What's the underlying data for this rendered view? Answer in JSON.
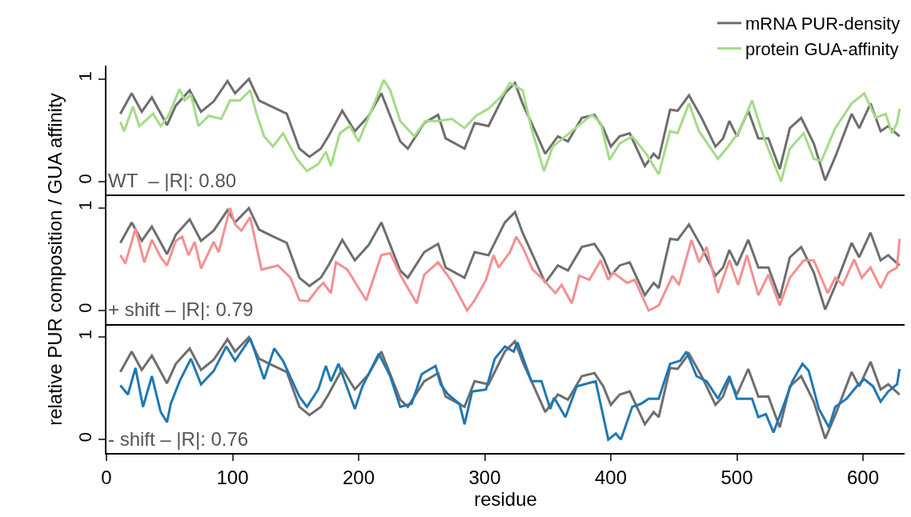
{
  "chart_data": [
    {
      "type": "line",
      "xlim": [
        0,
        633
      ],
      "xticks": [
        0,
        100,
        200,
        300,
        400,
        500,
        600
      ],
      "ylim": [
        -0.13,
        1.13
      ],
      "yticks": [
        0,
        1
      ],
      "tick_labels": "y",
      "legend": "top right",
      "annotations": [
        "WT  – |R|: 0.80"
      ],
      "series": [
        {
          "name": "mRNA PUR-density",
          "color": "#6e6e6e",
          "x": [
            11,
            20,
            28,
            36,
            48,
            55,
            66,
            75,
            85,
            96,
            102,
            113,
            121,
            131,
            143,
            153,
            161,
            170,
            176,
            187,
            197,
            208,
            218,
            233,
            239,
            252,
            263,
            269,
            284,
            292,
            303,
            316,
            324,
            330,
            340,
            348,
            358,
            366,
            377,
            387,
            394,
            400,
            407,
            415,
            427,
            434,
            438,
            447,
            453,
            462,
            472,
            483,
            489,
            494,
            500,
            509,
            517,
            525,
            534,
            542,
            551,
            561,
            570,
            578,
            591,
            597,
            606,
            614,
            620,
            629
          ],
          "values": [
            0.66,
            0.86,
            0.68,
            0.82,
            0.55,
            0.74,
            0.89,
            0.68,
            0.78,
            0.98,
            0.86,
            1.0,
            0.79,
            0.73,
            0.66,
            0.32,
            0.24,
            0.32,
            0.44,
            0.69,
            0.49,
            0.64,
            0.86,
            0.39,
            0.32,
            0.57,
            0.65,
            0.42,
            0.32,
            0.57,
            0.54,
            0.86,
            0.96,
            0.76,
            0.49,
            0.27,
            0.44,
            0.39,
            0.62,
            0.65,
            0.52,
            0.34,
            0.44,
            0.47,
            0.15,
            0.27,
            0.22,
            0.7,
            0.69,
            0.84,
            0.62,
            0.34,
            0.42,
            0.59,
            0.44,
            0.69,
            0.42,
            0.42,
            0.12,
            0.52,
            0.62,
            0.37,
            0.01,
            0.24,
            0.66,
            0.52,
            0.76,
            0.49,
            0.54,
            0.44
          ]
        },
        {
          "name": "protein GUA-affinity",
          "color": "#a3dc85",
          "x": [
            11,
            14,
            21,
            26,
            37,
            43,
            49,
            58,
            62,
            67,
            73,
            81,
            91,
            98,
            106,
            114,
            119,
            125,
            132,
            140,
            151,
            159,
            168,
            174,
            178,
            185,
            193,
            200,
            210,
            220,
            225,
            233,
            244,
            253,
            263,
            274,
            284,
            293,
            303,
            314,
            320,
            330,
            337,
            347,
            354,
            364,
            385,
            392,
            399,
            407,
            417,
            428,
            438,
            447,
            453,
            462,
            470,
            485,
            493,
            502,
            512,
            521,
            535,
            542,
            553,
            561,
            567,
            578,
            591,
            601,
            610,
            618,
            623,
            627,
            629
          ],
          "values": [
            0.58,
            0.49,
            0.73,
            0.54,
            0.66,
            0.54,
            0.64,
            0.9,
            0.79,
            0.85,
            0.54,
            0.64,
            0.61,
            0.79,
            0.79,
            0.89,
            0.66,
            0.44,
            0.34,
            0.47,
            0.22,
            0.1,
            0.17,
            0.29,
            0.15,
            0.47,
            0.54,
            0.39,
            0.69,
            0.99,
            0.89,
            0.59,
            0.44,
            0.59,
            0.59,
            0.61,
            0.52,
            0.64,
            0.71,
            0.84,
            0.96,
            0.89,
            0.52,
            0.1,
            0.34,
            0.44,
            0.65,
            0.57,
            0.21,
            0.37,
            0.44,
            0.27,
            0.07,
            0.49,
            0.47,
            0.76,
            0.49,
            0.22,
            0.34,
            0.49,
            0.79,
            0.44,
            0.0,
            0.32,
            0.47,
            0.22,
            0.2,
            0.52,
            0.76,
            0.86,
            0.62,
            0.66,
            0.47,
            0.57,
            0.71
          ]
        }
      ]
    },
    {
      "type": "line",
      "xlim": [
        0,
        633
      ],
      "xticks": [
        0,
        100,
        200,
        300,
        400,
        500,
        600
      ],
      "ylim": [
        -0.13,
        1.13
      ],
      "yticks": [
        0,
        1
      ],
      "tick_labels": "y",
      "ylabel": "relative PUR composition / GUA affinity",
      "annotations": [
        "+ shift – |R|: 0.79"
      ],
      "series": [
        {
          "color": "#6e6e6e",
          "x": [
            11,
            20,
            28,
            36,
            48,
            55,
            66,
            75,
            85,
            96,
            102,
            113,
            121,
            131,
            143,
            153,
            161,
            170,
            176,
            187,
            197,
            208,
            218,
            233,
            239,
            252,
            263,
            269,
            284,
            292,
            303,
            316,
            324,
            330,
            340,
            348,
            358,
            366,
            377,
            387,
            394,
            400,
            407,
            415,
            427,
            434,
            438,
            447,
            453,
            462,
            472,
            483,
            489,
            494,
            500,
            509,
            517,
            525,
            534,
            542,
            551,
            561,
            570,
            578,
            591,
            597,
            606,
            614,
            620,
            629
          ],
          "values": [
            0.66,
            0.86,
            0.68,
            0.82,
            0.55,
            0.74,
            0.89,
            0.68,
            0.78,
            0.98,
            0.86,
            1.0,
            0.79,
            0.73,
            0.66,
            0.32,
            0.24,
            0.32,
            0.44,
            0.69,
            0.49,
            0.64,
            0.86,
            0.39,
            0.32,
            0.57,
            0.65,
            0.42,
            0.32,
            0.57,
            0.54,
            0.86,
            0.96,
            0.76,
            0.49,
            0.27,
            0.44,
            0.39,
            0.62,
            0.65,
            0.52,
            0.34,
            0.44,
            0.47,
            0.15,
            0.27,
            0.22,
            0.7,
            0.69,
            0.84,
            0.62,
            0.34,
            0.42,
            0.59,
            0.44,
            0.69,
            0.42,
            0.42,
            0.12,
            0.52,
            0.62,
            0.37,
            0.01,
            0.24,
            0.66,
            0.52,
            0.76,
            0.49,
            0.54,
            0.44
          ]
        },
        {
          "color": "#f49090",
          "x": [
            11,
            15,
            23,
            30,
            36,
            43,
            48,
            55,
            60,
            65,
            70,
            75,
            85,
            89,
            98,
            102,
            107,
            114,
            123,
            136,
            146,
            153,
            160,
            168,
            172,
            178,
            182,
            191,
            206,
            218,
            225,
            233,
            246,
            252,
            263,
            273,
            286,
            292,
            301,
            307,
            311,
            320,
            325,
            330,
            338,
            345,
            356,
            361,
            369,
            375,
            383,
            392,
            398,
            402,
            413,
            419,
            430,
            438,
            449,
            454,
            464,
            470,
            476,
            485,
            494,
            501,
            508,
            517,
            525,
            534,
            542,
            553,
            561,
            572,
            578,
            584,
            593,
            599,
            606,
            614,
            620,
            627,
            629
          ],
          "values": [
            0.54,
            0.46,
            0.8,
            0.47,
            0.69,
            0.52,
            0.44,
            0.68,
            0.72,
            0.54,
            0.67,
            0.41,
            0.67,
            0.57,
            1.0,
            0.84,
            0.78,
            0.91,
            0.4,
            0.44,
            0.32,
            0.1,
            0.09,
            0.22,
            0.27,
            0.17,
            0.47,
            0.4,
            0.1,
            0.54,
            0.56,
            0.35,
            0.07,
            0.35,
            0.47,
            0.3,
            0.0,
            0.1,
            0.3,
            0.54,
            0.42,
            0.57,
            0.72,
            0.62,
            0.4,
            0.32,
            0.17,
            0.25,
            0.07,
            0.34,
            0.3,
            0.49,
            0.3,
            0.37,
            0.27,
            0.3,
            0.0,
            0.05,
            0.34,
            0.25,
            0.69,
            0.47,
            0.62,
            0.17,
            0.49,
            0.25,
            0.54,
            0.15,
            0.35,
            0.05,
            0.32,
            0.49,
            0.49,
            0.17,
            0.32,
            0.25,
            0.5,
            0.32,
            0.42,
            0.22,
            0.37,
            0.42,
            0.7
          ]
        }
      ]
    },
    {
      "type": "line",
      "xlim": [
        0,
        633
      ],
      "xticks": [
        0,
        100,
        200,
        300,
        400,
        500,
        600
      ],
      "ylim": [
        -0.13,
        1.13
      ],
      "yticks": [
        0,
        1
      ],
      "xlabel": "residue",
      "annotations": [
        "- shift – |R|: 0.76"
      ],
      "series": [
        {
          "color": "#6e6e6e",
          "x": [
            11,
            20,
            28,
            36,
            48,
            55,
            66,
            75,
            85,
            96,
            102,
            113,
            121,
            131,
            143,
            153,
            161,
            170,
            176,
            187,
            197,
            208,
            218,
            233,
            239,
            252,
            263,
            269,
            284,
            292,
            303,
            316,
            324,
            330,
            340,
            348,
            358,
            366,
            377,
            387,
            394,
            400,
            407,
            415,
            427,
            434,
            438,
            447,
            453,
            462,
            472,
            483,
            489,
            494,
            500,
            509,
            517,
            525,
            534,
            542,
            551,
            561,
            570,
            578,
            591,
            597,
            606,
            614,
            620,
            629
          ],
          "values": [
            0.66,
            0.86,
            0.68,
            0.82,
            0.55,
            0.74,
            0.89,
            0.68,
            0.78,
            0.98,
            0.86,
            1.0,
            0.79,
            0.73,
            0.66,
            0.32,
            0.24,
            0.32,
            0.44,
            0.69,
            0.49,
            0.64,
            0.86,
            0.39,
            0.32,
            0.57,
            0.65,
            0.42,
            0.32,
            0.57,
            0.54,
            0.86,
            0.96,
            0.76,
            0.49,
            0.27,
            0.44,
            0.39,
            0.62,
            0.65,
            0.52,
            0.34,
            0.44,
            0.47,
            0.15,
            0.27,
            0.22,
            0.7,
            0.69,
            0.84,
            0.62,
            0.34,
            0.42,
            0.59,
            0.44,
            0.69,
            0.42,
            0.42,
            0.12,
            0.52,
            0.62,
            0.37,
            0.01,
            0.24,
            0.66,
            0.52,
            0.76,
            0.49,
            0.54,
            0.44
          ]
        },
        {
          "color": "#1f78b4",
          "x": [
            11,
            17,
            23,
            29,
            36,
            43,
            48,
            51,
            58,
            67,
            75,
            85,
            95,
            102,
            114,
            119,
            125,
            133,
            140,
            153,
            159,
            168,
            174,
            178,
            184,
            197,
            203,
            216,
            225,
            233,
            242,
            250,
            261,
            265,
            271,
            280,
            284,
            290,
            301,
            308,
            316,
            323,
            326,
            337,
            345,
            352,
            355,
            364,
            373,
            388,
            398,
            404,
            408,
            417,
            424,
            430,
            438,
            447,
            455,
            460,
            468,
            476,
            485,
            494,
            500,
            512,
            517,
            523,
            529,
            536,
            544,
            552,
            557,
            565,
            573,
            578,
            587,
            595,
            601,
            608,
            614,
            620,
            627,
            629
          ],
          "values": [
            0.53,
            0.44,
            0.7,
            0.32,
            0.62,
            0.27,
            0.17,
            0.35,
            0.57,
            0.79,
            0.54,
            0.67,
            0.91,
            0.77,
            0.99,
            0.81,
            0.59,
            0.89,
            0.77,
            0.42,
            0.32,
            0.49,
            0.72,
            0.57,
            0.74,
            0.3,
            0.52,
            0.84,
            0.62,
            0.32,
            0.35,
            0.64,
            0.72,
            0.54,
            0.44,
            0.35,
            0.15,
            0.47,
            0.49,
            0.79,
            0.91,
            0.86,
            0.95,
            0.57,
            0.57,
            0.3,
            0.41,
            0.22,
            0.52,
            0.57,
            0.0,
            0.06,
            0.0,
            0.32,
            0.35,
            0.4,
            0.4,
            0.74,
            0.77,
            0.86,
            0.62,
            0.57,
            0.4,
            0.62,
            0.4,
            0.4,
            0.22,
            0.25,
            0.07,
            0.3,
            0.57,
            0.74,
            0.67,
            0.3,
            0.12,
            0.32,
            0.4,
            0.52,
            0.59,
            0.52,
            0.37,
            0.47,
            0.54,
            0.69
          ]
        }
      ]
    }
  ]
}
